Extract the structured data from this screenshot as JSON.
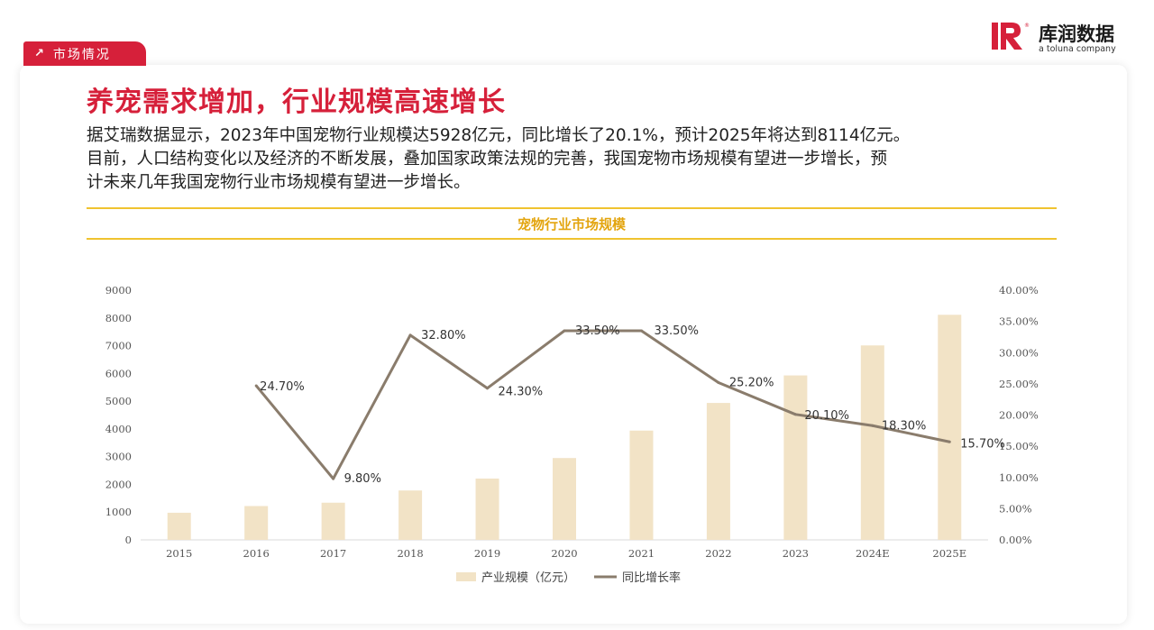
{
  "header": {
    "section_tag": "市场情况",
    "logo_cn": "库润数据",
    "logo_en": "a toluna company",
    "registered_mark": "®"
  },
  "title": "养宠需求增加，行业规模高速增长",
  "description": [
    "据艾瑞数据显示，2023年中国宠物行业规模达5928亿元，同比增长了20.1%，预计2025年将达到8114亿元。",
    "目前，人口结构变化以及经济的不断发展，叠加国家政策法规的完善，我国宠物市场规模有望进一步增长，预",
    "计未来几年我国宠物行业市场规模有望进一步增长。"
  ],
  "chart_title": "宠物行业市场规模",
  "colors": {
    "accent": "#d6203a",
    "gold": "#f0c330",
    "bar": "#f2e3c6",
    "line": "#8a7c6c"
  },
  "chart_data": {
    "type": "bar",
    "categories": [
      "2015",
      "2016",
      "2017",
      "2018",
      "2019",
      "2020",
      "2021",
      "2022",
      "2023",
      "2024E",
      "2025E"
    ],
    "series": [
      {
        "name": "产业规模（亿元）",
        "type": "bar",
        "axis": "left",
        "values": [
          978,
          1220,
          1340,
          1780,
          2210,
          2950,
          3940,
          4936,
          5928,
          7010,
          8114
        ]
      },
      {
        "name": "同比增长率",
        "type": "line",
        "axis": "right",
        "values": [
          null,
          24.7,
          9.8,
          32.8,
          24.3,
          33.5,
          33.5,
          25.2,
          20.1,
          18.3,
          15.7
        ],
        "labels": [
          "",
          "24.70%",
          "9.80%",
          "32.80%",
          "24.30%",
          "33.50%",
          "33.50%",
          "25.20%",
          "20.10%",
          "18.30%",
          "15.70%"
        ]
      }
    ],
    "y_left": {
      "min": 0,
      "max": 9000,
      "ticks": [
        "0",
        "1000",
        "2000",
        "3000",
        "4000",
        "5000",
        "6000",
        "7000",
        "8000",
        "9000"
      ]
    },
    "y_right": {
      "min": 0,
      "max": 40,
      "ticks": [
        "0.00%",
        "5.00%",
        "10.00%",
        "15.00%",
        "20.00%",
        "25.00%",
        "30.00%",
        "35.00%",
        "40.00%"
      ]
    },
    "grid": false,
    "legend": "bottom-center"
  }
}
